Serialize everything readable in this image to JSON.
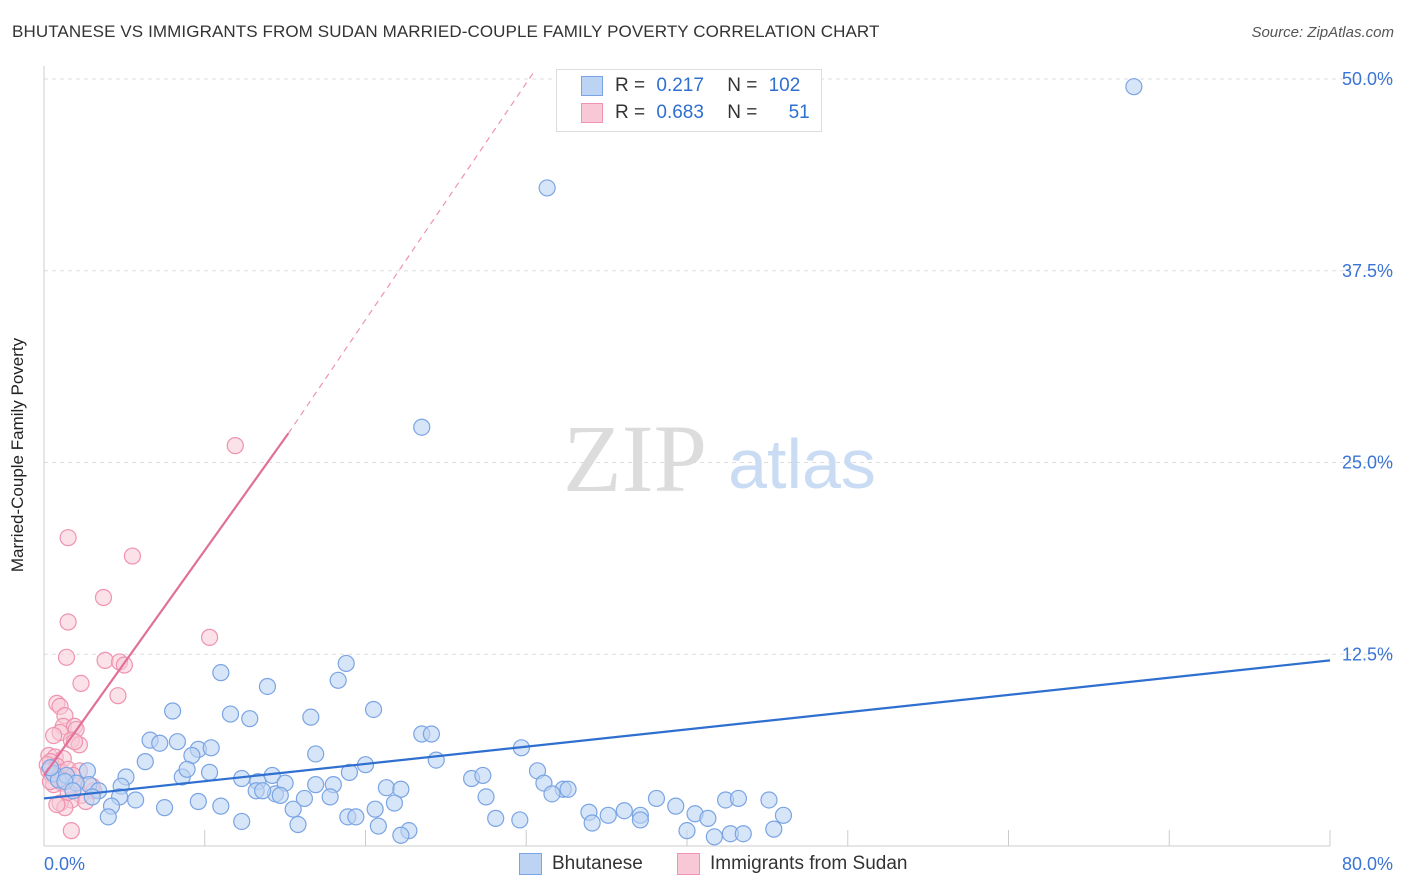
{
  "header": {
    "title": "BHUTANESE VS IMMIGRANTS FROM SUDAN MARRIED-COUPLE FAMILY POVERTY CORRELATION CHART",
    "source": "Source: ZipAtlas.com"
  },
  "watermark": {
    "zip": "ZIP",
    "atlas": "atlas"
  },
  "colors": {
    "blue_fill": "#bcd3f4",
    "blue_stroke": "#7aa4e3",
    "blue_line": "#2e6fd0",
    "pink_fill": "#f8c8d6",
    "pink_stroke": "#ef93b0",
    "pink_line": "#e0709a",
    "grid": "#dddddd",
    "axis_text": "#3a74d4"
  },
  "stats_legend": {
    "rows": [
      {
        "r_label": "R =",
        "r_value": "0.217",
        "n_label": "N =",
        "n_value": "102"
      },
      {
        "r_label": "R =",
        "r_value": "0.683",
        "n_label": "N =",
        "n_value": "51"
      }
    ]
  },
  "bottom_legend": {
    "items": [
      "Bhutanese",
      "Immigrants from Sudan"
    ]
  },
  "chart_data": {
    "type": "scatter",
    "title": "BHUTANESE VS IMMIGRANTS FROM SUDAN MARRIED-COUPLE FAMILY POVERTY CORRELATION CHART",
    "xlabel": "",
    "ylabel": "Married-Couple Family Poverty",
    "xlim": [
      0,
      80
    ],
    "ylim": [
      0,
      52
    ],
    "x_tick_labels": [
      {
        "value": 0,
        "label": "0.0%"
      },
      {
        "value": 80,
        "label": "80.0%"
      }
    ],
    "y_tick_labels": [
      {
        "value": 12.5,
        "label": "12.5%"
      },
      {
        "value": 25,
        "label": "25.0%"
      },
      {
        "value": 37.5,
        "label": "37.5%"
      },
      {
        "value": 50,
        "label": "50.0%"
      }
    ],
    "grid": true,
    "series": [
      {
        "name": "Bhutanese",
        "r": 0.217,
        "n": 102,
        "trend": {
          "x0": 0,
          "y0": 3.1,
          "x1": 80,
          "y1": 12.1,
          "dashed_to": null
        },
        "points": [
          [
            67.8,
            49.5
          ],
          [
            31.3,
            42.9
          ],
          [
            23.5,
            27.3
          ],
          [
            18.8,
            11.9
          ],
          [
            11.0,
            11.3
          ],
          [
            13.9,
            10.4
          ],
          [
            18.3,
            10.8
          ],
          [
            8.0,
            8.8
          ],
          [
            11.6,
            8.6
          ],
          [
            12.8,
            8.3
          ],
          [
            16.6,
            8.4
          ],
          [
            20.5,
            8.9
          ],
          [
            23.5,
            7.3
          ],
          [
            24.1,
            7.3
          ],
          [
            29.7,
            6.4
          ],
          [
            6.6,
            6.9
          ],
          [
            7.2,
            6.7
          ],
          [
            8.3,
            6.8
          ],
          [
            9.6,
            6.3
          ],
          [
            10.4,
            6.4
          ],
          [
            9.2,
            5.9
          ],
          [
            16.9,
            6.0
          ],
          [
            20.0,
            5.3
          ],
          [
            24.4,
            5.6
          ],
          [
            6.3,
            5.5
          ],
          [
            2.7,
            4.9
          ],
          [
            5.1,
            4.5
          ],
          [
            8.6,
            4.5
          ],
          [
            8.9,
            5.0
          ],
          [
            10.3,
            4.8
          ],
          [
            12.3,
            4.4
          ],
          [
            13.3,
            4.2
          ],
          [
            14.2,
            4.6
          ],
          [
            16.9,
            4.0
          ],
          [
            18.0,
            4.0
          ],
          [
            19.0,
            4.8
          ],
          [
            26.6,
            4.4
          ],
          [
            27.3,
            4.6
          ],
          [
            30.7,
            4.9
          ],
          [
            31.1,
            4.1
          ],
          [
            32.3,
            3.7
          ],
          [
            21.3,
            3.8
          ],
          [
            22.2,
            3.7
          ],
          [
            2.8,
            4.0
          ],
          [
            3.4,
            3.6
          ],
          [
            4.8,
            3.9
          ],
          [
            13.2,
            3.6
          ],
          [
            14.4,
            3.4
          ],
          [
            15.0,
            4.1
          ],
          [
            0.6,
            4.7
          ],
          [
            0.9,
            4.3
          ],
          [
            1.4,
            4.6
          ],
          [
            2.0,
            4.1
          ],
          [
            3.0,
            3.2
          ],
          [
            4.7,
            3.2
          ],
          [
            5.7,
            3.0
          ],
          [
            9.6,
            2.9
          ],
          [
            11.0,
            2.6
          ],
          [
            13.6,
            3.6
          ],
          [
            14.7,
            3.3
          ],
          [
            16.2,
            3.1
          ],
          [
            17.8,
            3.2
          ],
          [
            21.8,
            2.8
          ],
          [
            27.5,
            3.2
          ],
          [
            31.6,
            3.4
          ],
          [
            32.6,
            3.7
          ],
          [
            38.1,
            3.1
          ],
          [
            39.3,
            2.6
          ],
          [
            42.4,
            3.0
          ],
          [
            43.2,
            3.1
          ],
          [
            45.1,
            3.0
          ],
          [
            4.2,
            2.6
          ],
          [
            7.5,
            2.5
          ],
          [
            15.5,
            2.4
          ],
          [
            20.6,
            2.4
          ],
          [
            33.9,
            2.2
          ],
          [
            35.1,
            2.0
          ],
          [
            36.1,
            2.3
          ],
          [
            37.1,
            2.0
          ],
          [
            40.5,
            2.1
          ],
          [
            46.0,
            2.0
          ],
          [
            4.0,
            1.9
          ],
          [
            12.3,
            1.6
          ],
          [
            15.8,
            1.4
          ],
          [
            18.9,
            1.9
          ],
          [
            19.4,
            1.9
          ],
          [
            20.8,
            1.3
          ],
          [
            28.1,
            1.8
          ],
          [
            29.6,
            1.7
          ],
          [
            34.1,
            1.5
          ],
          [
            37.1,
            1.7
          ],
          [
            40.0,
            1.0
          ],
          [
            41.3,
            1.8
          ],
          [
            45.4,
            1.1
          ],
          [
            41.7,
            0.6
          ],
          [
            42.7,
            0.8
          ],
          [
            43.5,
            0.8
          ],
          [
            22.7,
            1.0
          ],
          [
            22.2,
            0.7
          ],
          [
            1.3,
            4.2
          ],
          [
            0.4,
            5.1
          ],
          [
            1.8,
            3.6
          ]
        ]
      },
      {
        "name": "Immigrants from Sudan",
        "r": 0.683,
        "n": 51,
        "trend": {
          "x0": 0,
          "y0": 4.6,
          "x1": 15.2,
          "y1": 26.9,
          "dashed_to": {
            "x": 30.5,
            "y": 50.5
          }
        },
        "points": [
          [
            11.9,
            26.1
          ],
          [
            1.5,
            20.1
          ],
          [
            5.5,
            18.9
          ],
          [
            3.7,
            16.2
          ],
          [
            1.5,
            14.6
          ],
          [
            10.3,
            13.6
          ],
          [
            1.4,
            12.3
          ],
          [
            3.8,
            12.1
          ],
          [
            4.7,
            12.0
          ],
          [
            5.0,
            11.8
          ],
          [
            2.3,
            10.6
          ],
          [
            4.6,
            9.8
          ],
          [
            0.8,
            9.3
          ],
          [
            1.0,
            9.1
          ],
          [
            1.3,
            8.5
          ],
          [
            1.2,
            7.8
          ],
          [
            1.9,
            7.8
          ],
          [
            1.0,
            7.4
          ],
          [
            0.6,
            7.2
          ],
          [
            2.0,
            7.6
          ],
          [
            1.7,
            6.9
          ],
          [
            2.2,
            6.6
          ],
          [
            1.9,
            6.8
          ],
          [
            0.3,
            5.9
          ],
          [
            0.7,
            5.8
          ],
          [
            1.2,
            5.7
          ],
          [
            0.4,
            5.5
          ],
          [
            0.2,
            5.3
          ],
          [
            0.8,
            5.2
          ],
          [
            0.3,
            4.9
          ],
          [
            1.1,
            4.8
          ],
          [
            1.5,
            5.0
          ],
          [
            2.2,
            4.9
          ],
          [
            0.5,
            4.6
          ],
          [
            0.9,
            4.5
          ],
          [
            1.3,
            4.3
          ],
          [
            2.0,
            4.1
          ],
          [
            1.1,
            4.1
          ],
          [
            0.6,
            4.0
          ],
          [
            1.8,
            4.6
          ],
          [
            2.3,
            3.3
          ],
          [
            3.1,
            3.6
          ],
          [
            1.7,
            3.0
          ],
          [
            1.0,
            2.8
          ],
          [
            1.3,
            2.5
          ],
          [
            2.6,
            2.9
          ],
          [
            1.7,
            1.0
          ],
          [
            0.4,
            4.2
          ],
          [
            3.0,
            3.9
          ],
          [
            0.8,
            2.7
          ],
          [
            1.5,
            3.5
          ]
        ]
      }
    ]
  }
}
